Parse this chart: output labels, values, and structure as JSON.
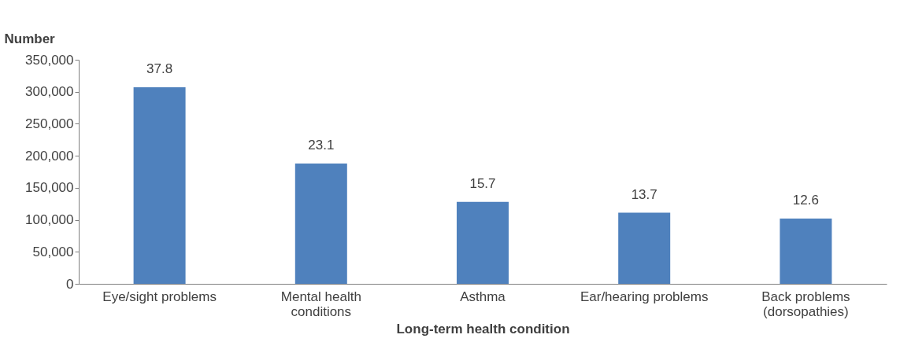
{
  "chart_data": {
    "type": "bar",
    "xlabel": "Long-term health condition",
    "ylabel": "Number",
    "categories": [
      "Eye/sight problems",
      "Mental health conditions",
      "Asthma",
      "Ear/hearing problems",
      "Back problems (dorsopathies)"
    ],
    "values": [
      307000,
      188000,
      128000,
      111000,
      102000
    ],
    "annotations": [
      {
        "text": "37.8",
        "x": "Eye/sight problems",
        "y": 307000
      },
      {
        "text": "23.1",
        "x": "Mental health conditions",
        "y": 188000
      },
      {
        "text": "15.7",
        "x": "Asthma",
        "y": 128000
      },
      {
        "text": "13.7",
        "x": "Ear/hearing problems",
        "y": 111000
      },
      {
        "text": "12.6",
        "x": "Back problems (dorsopathies)",
        "y": 102000
      }
    ],
    "color": "#4f81bd",
    "ylim": [
      0,
      350000
    ],
    "yticks": [
      0,
      {
        "value": 50000,
        "label": "50,000"
      },
      {
        "value": 100000,
        "label": "100,000"
      },
      {
        "value": 150000,
        "label": "150,000"
      },
      {
        "value": 200000,
        "label": "200,000"
      },
      {
        "value": 250000,
        "label": "250,000"
      },
      {
        "value": 300000,
        "label": "300,000"
      },
      {
        "value": 350000,
        "label": "350,000"
      }
    ],
    "grid": false
  }
}
